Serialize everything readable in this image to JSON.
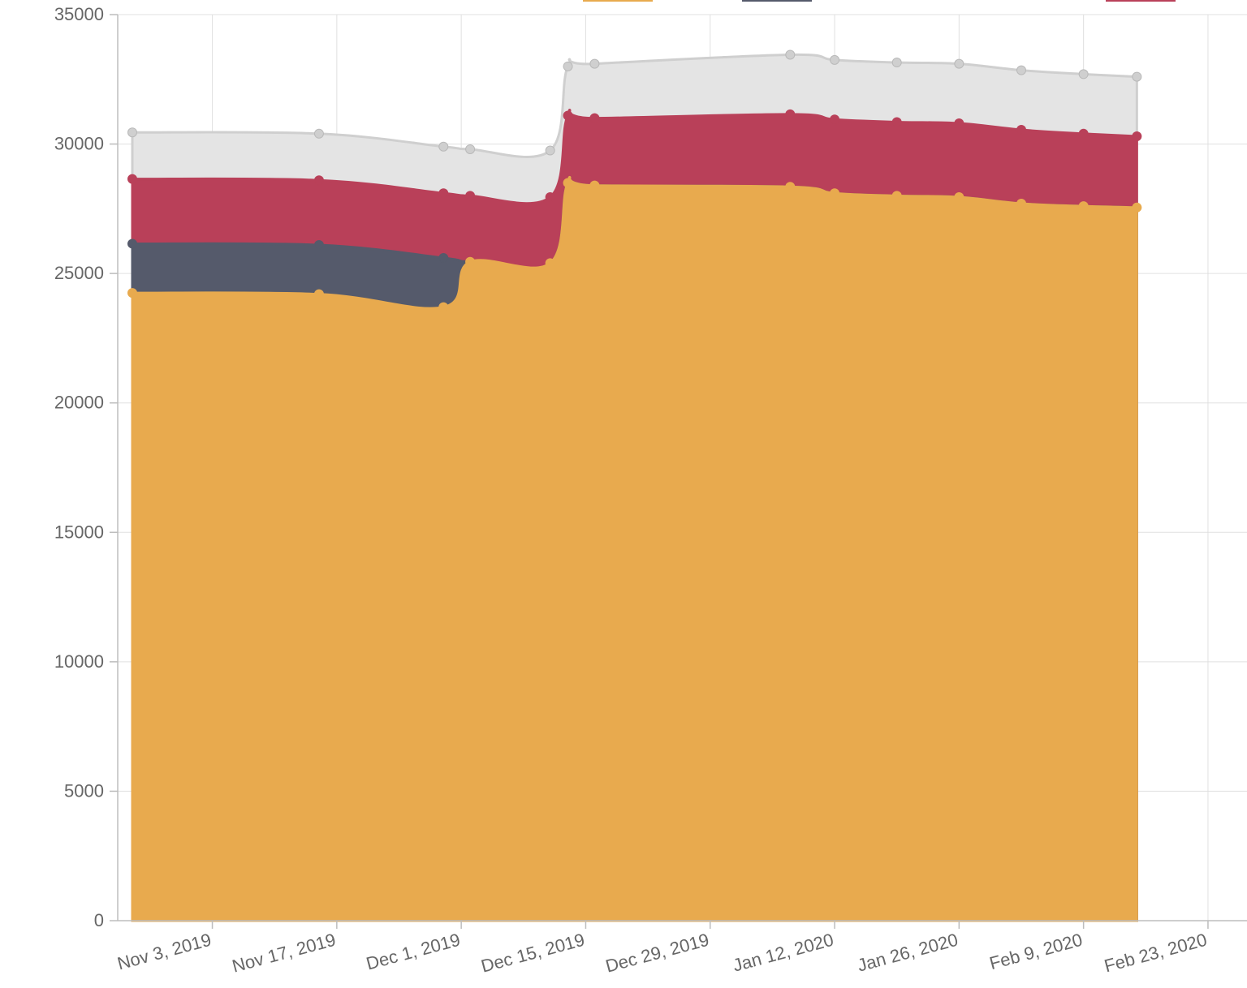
{
  "chart_data": {
    "type": "area",
    "stacked": true,
    "title": "",
    "xlabel": "",
    "ylabel": "",
    "ylim": [
      0,
      35000
    ],
    "y_ticks": [
      "0",
      "5000",
      "10000",
      "15000",
      "20000",
      "25000",
      "30000",
      "35000"
    ],
    "x_ticks": [
      "Nov 3, 2019",
      "Nov 17, 2019",
      "Dec 1, 2019",
      "Dec 15, 2019",
      "Dec 29, 2019",
      "Jan 12, 2020",
      "Jan 26, 2020",
      "Feb 9, 2020",
      "Feb 23, 2020"
    ],
    "x_tick_dates": [
      "2019-11-03",
      "2019-11-17",
      "2019-12-01",
      "2019-12-15",
      "2019-12-29",
      "2020-01-12",
      "2020-01-26",
      "2020-02-09",
      "2020-02-23"
    ],
    "xlim": [
      "2019-10-25",
      "2020-02-24"
    ],
    "grid": true,
    "legend": "top, labels cut off",
    "x": [
      "2019-10-25",
      "2019-11-15",
      "2019-11-29",
      "2019-12-02",
      "2019-12-11",
      "2019-12-13",
      "2019-12-16",
      "2020-01-07",
      "2020-01-12",
      "2020-01-19",
      "2020-01-26",
      "2020-02-02",
      "2020-02-09",
      "2020-02-15"
    ],
    "series": [
      {
        "color": "#e8aa4e",
        "values": [
          24250,
          24200,
          23700,
          25450,
          25400,
          28500,
          28400,
          28350,
          28100,
          28000,
          27950,
          27700,
          27600,
          27550
        ]
      },
      {
        "color": "#555a6b",
        "values": [
          1900,
          1900,
          1900,
          0,
          0,
          0,
          0,
          0,
          0,
          0,
          0,
          0,
          0,
          0
        ]
      },
      {
        "color": "#b94059",
        "values": [
          2500,
          2500,
          2500,
          2550,
          2550,
          2600,
          2600,
          2800,
          2850,
          2850,
          2850,
          2850,
          2800,
          2750
        ]
      },
      {
        "color": "#c8c8c8",
        "values": [
          1800,
          1800,
          1800,
          1800,
          1800,
          1900,
          2100,
          2300,
          2300,
          2300,
          2300,
          2300,
          2300,
          2300
        ]
      }
    ]
  }
}
